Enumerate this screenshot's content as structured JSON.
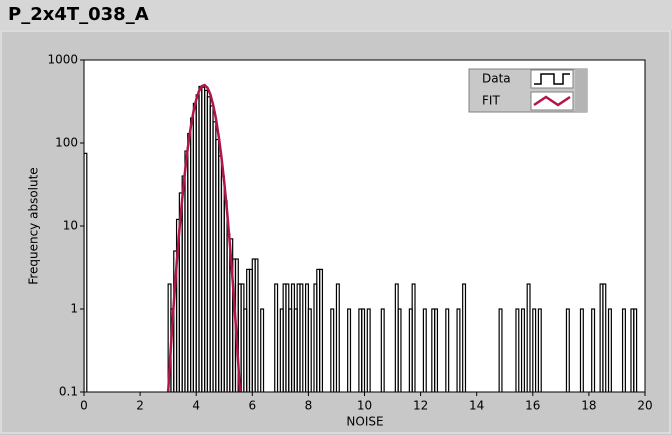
{
  "chart_data": {
    "type": "histogram",
    "title": "P_2x4T_038_A",
    "xlabel": "NOISE",
    "ylabel": "Frequency absolute",
    "log_y": true,
    "grid": false,
    "legend": "top-right",
    "xlim": [
      0,
      20
    ],
    "ylim": [
      0.1,
      1000
    ],
    "xticks": [
      0,
      2,
      4,
      6,
      8,
      10,
      12,
      14,
      16,
      18,
      20
    ],
    "yticks": [
      0.1,
      1,
      10,
      100,
      1000
    ],
    "bins": [
      0,
      0.1,
      0.2,
      0.3,
      0.4,
      0.5,
      0.6,
      0.7,
      0.8,
      0.9,
      1,
      1.1,
      1.2,
      1.3,
      1.4,
      1.5,
      1.6,
      1.7,
      1.8,
      1.9,
      2,
      2.1,
      2.2,
      2.3,
      2.4,
      2.5,
      2.6,
      2.7,
      2.8,
      2.9,
      3,
      3.1,
      3.2,
      3.3,
      3.4,
      3.5,
      3.6,
      3.7,
      3.8,
      3.9,
      4,
      4.1,
      4.2,
      4.3,
      4.4,
      4.5,
      4.6,
      4.7,
      4.8,
      4.9,
      5,
      5.1,
      5.2,
      5.3,
      5.4,
      5.5,
      5.6,
      5.7,
      5.8,
      5.9,
      6,
      6.1,
      6.2,
      6.3,
      6.4,
      6.5,
      6.6,
      6.7,
      6.8,
      6.9,
      7,
      7.1,
      7.2,
      7.3,
      7.4,
      7.5,
      7.6,
      7.7,
      7.8,
      7.9,
      8,
      8.1,
      8.2,
      8.3,
      8.4,
      8.5,
      8.6,
      8.7,
      8.8,
      8.9,
      9,
      9.1,
      9.2,
      9.3,
      9.4,
      9.5,
      9.6,
      9.7,
      9.8,
      9.9,
      10,
      10.1,
      10.2,
      10.3,
      10.4,
      10.5,
      10.6,
      10.7,
      10.8,
      10.9,
      11,
      11.1,
      11.2,
      11.3,
      11.4,
      11.5,
      11.6,
      11.7,
      11.8,
      11.9,
      12,
      12.1,
      12.2,
      12.3,
      12.4,
      12.5,
      12.6,
      12.7,
      12.8,
      12.9,
      13,
      13.1,
      13.2,
      13.3,
      13.4,
      13.5,
      13.6,
      13.7,
      13.8,
      13.9,
      14,
      14.1,
      14.2,
      14.3,
      14.4,
      14.5,
      14.6,
      14.7,
      14.8,
      14.9,
      15,
      15.1,
      15.2,
      15.3,
      15.4,
      15.5,
      15.6,
      15.7,
      15.8,
      15.9,
      16,
      16.1,
      16.2,
      16.3,
      16.4,
      16.5,
      16.6,
      16.7,
      16.8,
      16.9,
      17,
      17.1,
      17.2,
      17.3,
      17.4,
      17.5,
      17.6,
      17.7,
      17.8,
      17.9,
      18,
      18.1,
      18.2,
      18.3,
      18.4,
      18.5,
      18.6,
      18.7,
      18.8,
      18.9,
      19,
      19.1,
      19.2,
      19.3,
      19.4,
      19.5,
      19.6,
      19.7,
      19.8,
      19.9,
      20
    ],
    "series": [
      {
        "name": "Data",
        "type": "histogram",
        "color": "#000000",
        "values": [
          75,
          0,
          0,
          0,
          0,
          0,
          0,
          0,
          0,
          0,
          0,
          0,
          0,
          0,
          0,
          0,
          0,
          0,
          0,
          0,
          0,
          0,
          0,
          0,
          0,
          0,
          0,
          0,
          0,
          0,
          2,
          1,
          5,
          12,
          25,
          40,
          80,
          130,
          200,
          300,
          380,
          480,
          470,
          430,
          360,
          280,
          180,
          110,
          70,
          40,
          20,
          8,
          7,
          4,
          4,
          2,
          2,
          1,
          3,
          3,
          4,
          4,
          0,
          1,
          0,
          0,
          0,
          0,
          2,
          0,
          1,
          2,
          2,
          1,
          2,
          1,
          2,
          2,
          0,
          2,
          1,
          0,
          2,
          3,
          3,
          0,
          0,
          0,
          1,
          0,
          2,
          0,
          0,
          0,
          1,
          0,
          0,
          0,
          1,
          1,
          0,
          1,
          0,
          0,
          0,
          0,
          1,
          0,
          0,
          0,
          0,
          2,
          1,
          0,
          0,
          0,
          1,
          2,
          0,
          0,
          0,
          1,
          0,
          0,
          1,
          1,
          0,
          0,
          0,
          1,
          0,
          0,
          0,
          1,
          0,
          2,
          0,
          0,
          0,
          0,
          0,
          0,
          0,
          0,
          0,
          0,
          0,
          0,
          1,
          0,
          0,
          0,
          0,
          0,
          1,
          0,
          1,
          0,
          2,
          0,
          1,
          0,
          1,
          0,
          0,
          0,
          0,
          0,
          0,
          0,
          0,
          0,
          1,
          0,
          0,
          0,
          0,
          1,
          0,
          0,
          0,
          1,
          0,
          0,
          2,
          2,
          0,
          1,
          0,
          0,
          0,
          0,
          1,
          0,
          0,
          1,
          1,
          0,
          0,
          0
        ]
      },
      {
        "name": "FIT",
        "type": "line",
        "color": "#b0154b",
        "x": [
          3,
          3.1,
          3.2,
          3.3,
          3.4,
          3.5,
          3.6,
          3.7,
          3.8,
          3.9,
          4,
          4.1,
          4.2,
          4.3,
          4.4,
          4.5,
          4.6,
          4.7,
          4.8,
          4.9,
          5,
          5.1,
          5.2,
          5.3,
          5.4,
          5.5,
          5.6
        ],
        "values": [
          0.1,
          0.36,
          1.16,
          3.4,
          8.9,
          21.1,
          45.1,
          86.9,
          150.8,
          236,
          332,
          422,
          484,
          499,
          464,
          389,
          293,
          200,
          122,
          67.7,
          33.7,
          15.1,
          6.1,
          2.2,
          0.73,
          0.22,
          0.06
        ]
      }
    ]
  }
}
